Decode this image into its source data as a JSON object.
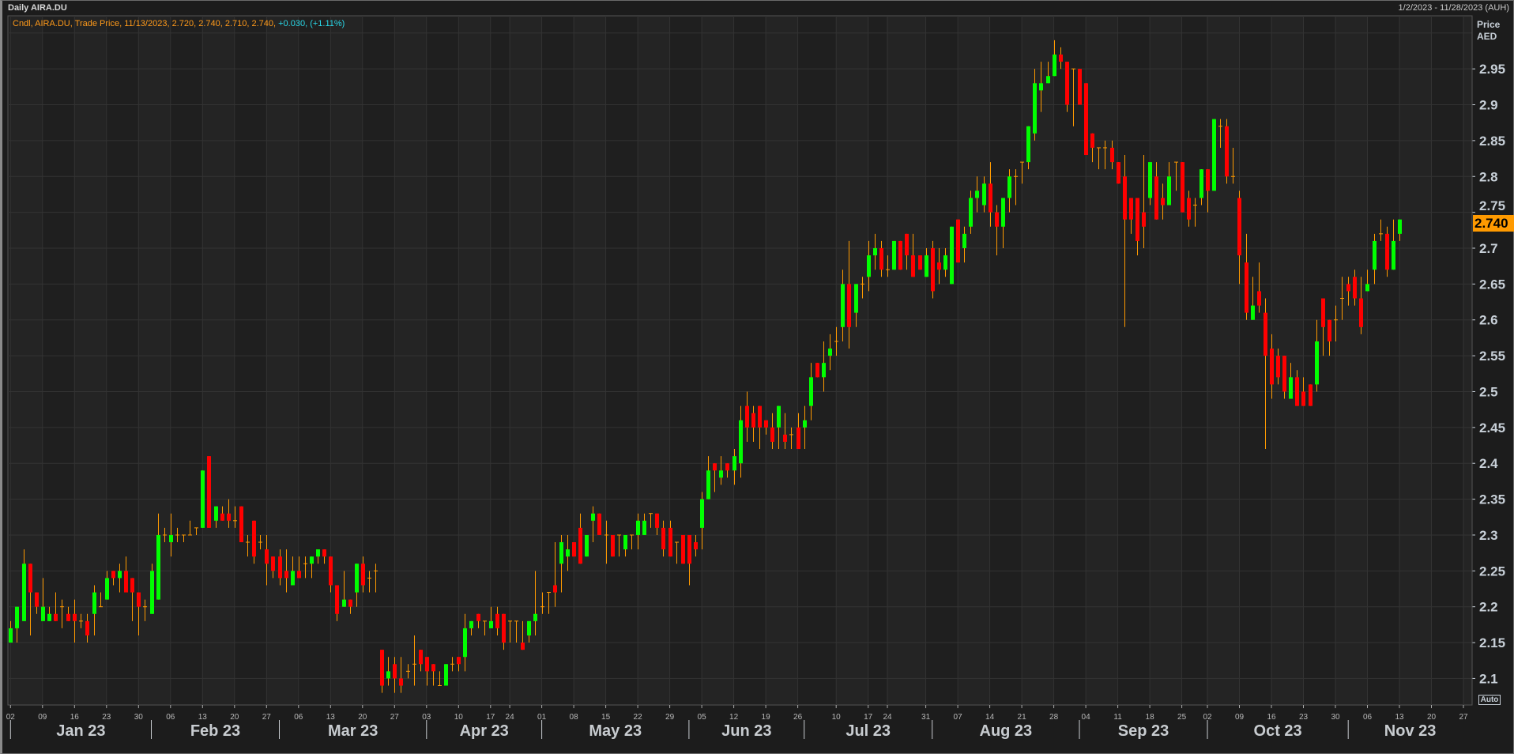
{
  "header": {
    "title": "Daily AIRA.DU",
    "date_range": "1/2/2023 - 11/28/2023 (AUH)"
  },
  "legend": {
    "text": "Cndl, AIRA.DU, Trade Price, 11/13/2023, 2.720, 2.740, 2.710, 2.740, ",
    "change": "+0.030, (+1.11%)"
  },
  "axis": {
    "price_label": "Price",
    "currency_label": "AED",
    "auto_label": "Auto",
    "last_price": "2.740"
  },
  "colors": {
    "up": "#00ff00",
    "down": "#ff0000",
    "wick": "#ff9a00",
    "last_price_bg": "#ff9a00",
    "change_text": "#29d8e8"
  },
  "chart_data": {
    "type": "candlestick",
    "title": "Daily AIRA.DU",
    "ylabel": "Price AED",
    "ylim": [
      2.063,
      3.024
    ],
    "grid": true,
    "ohlc_fields": [
      "open",
      "high",
      "low",
      "close"
    ],
    "first_date": "1/2/2023",
    "last_date": "11/13/2023",
    "y_ticks": [
      "2.1",
      "2.15",
      "2.2",
      "2.25",
      "2.3",
      "2.35",
      "2.4",
      "2.45",
      "2.5",
      "2.55",
      "2.6",
      "2.65",
      "2.7",
      "2.75",
      "2.8",
      "2.85",
      "2.9",
      "2.95"
    ],
    "x_day_ticks": [
      "02",
      "09",
      "16",
      "23",
      "30",
      "06",
      "13",
      "20",
      "27",
      "06",
      "13",
      "20",
      "27",
      "03",
      "10",
      "17",
      "24",
      "01",
      "08",
      "15",
      "22",
      "29",
      "05",
      "12",
      "19",
      "26",
      "10",
      "17",
      "24",
      "31",
      "07",
      "14",
      "21",
      "28",
      "04",
      "11",
      "18",
      "25",
      "02",
      "09",
      "16",
      "23",
      "30",
      "06",
      "13",
      "20",
      "27"
    ],
    "x_months": [
      "Jan 23",
      "Feb 23",
      "Mar 23",
      "Apr 23",
      "May 23",
      "Jun 23",
      "Jul 23",
      "Aug 23",
      "Sep 23",
      "Oct 23",
      "Nov 23"
    ],
    "candles": [
      [
        2.15,
        2.18,
        2.15,
        2.17
      ],
      [
        2.17,
        2.2,
        2.15,
        2.2
      ],
      [
        2.18,
        2.28,
        2.18,
        2.26
      ],
      [
        2.26,
        2.26,
        2.16,
        2.22
      ],
      [
        2.22,
        2.22,
        2.19,
        2.2
      ],
      [
        2.18,
        2.24,
        2.18,
        2.2
      ],
      [
        2.18,
        2.2,
        2.18,
        2.19
      ],
      [
        2.19,
        2.22,
        2.18,
        2.18
      ],
      [
        2.2,
        2.21,
        2.17,
        2.2
      ],
      [
        2.19,
        2.2,
        2.18,
        2.18
      ],
      [
        2.19,
        2.21,
        2.15,
        2.18
      ],
      [
        2.18,
        2.19,
        2.17,
        2.18
      ],
      [
        2.18,
        2.19,
        2.15,
        2.16
      ],
      [
        2.19,
        2.23,
        2.16,
        2.22
      ],
      [
        2.2,
        2.22,
        2.2,
        2.2
      ],
      [
        2.21,
        2.25,
        2.21,
        2.24
      ],
      [
        2.25,
        2.25,
        2.23,
        2.24
      ],
      [
        2.24,
        2.26,
        2.22,
        2.25
      ],
      [
        2.25,
        2.27,
        2.22,
        2.22
      ],
      [
        2.24,
        2.24,
        2.18,
        2.22
      ],
      [
        2.22,
        2.22,
        2.16,
        2.2
      ],
      [
        2.2,
        2.21,
        2.18,
        2.2
      ],
      [
        2.19,
        2.26,
        2.19,
        2.25
      ],
      [
        2.21,
        2.33,
        2.21,
        2.3
      ],
      [
        2.3,
        2.31,
        2.29,
        2.3
      ],
      [
        2.29,
        2.33,
        2.27,
        2.3
      ],
      [
        2.3,
        2.31,
        2.29,
        2.3
      ],
      [
        2.3,
        2.3,
        2.29,
        2.3
      ],
      [
        2.3,
        2.32,
        2.3,
        2.3
      ],
      [
        2.31,
        2.31,
        2.3,
        2.31
      ],
      [
        2.31,
        2.39,
        2.31,
        2.39
      ],
      [
        2.41,
        2.41,
        2.31,
        2.31
      ],
      [
        2.32,
        2.34,
        2.31,
        2.34
      ],
      [
        2.33,
        2.34,
        2.32,
        2.32
      ],
      [
        2.33,
        2.35,
        2.31,
        2.32
      ],
      [
        2.32,
        2.34,
        2.31,
        2.32
      ],
      [
        2.34,
        2.34,
        2.29,
        2.29
      ],
      [
        2.29,
        2.3,
        2.27,
        2.29
      ],
      [
        2.32,
        2.32,
        2.26,
        2.27
      ],
      [
        2.29,
        2.3,
        2.28,
        2.29
      ],
      [
        2.28,
        2.3,
        2.23,
        2.26
      ],
      [
        2.27,
        2.27,
        2.24,
        2.25
      ],
      [
        2.27,
        2.28,
        2.23,
        2.24
      ],
      [
        2.25,
        2.28,
        2.22,
        2.24
      ],
      [
        2.23,
        2.27,
        2.23,
        2.25
      ],
      [
        2.25,
        2.27,
        2.24,
        2.24
      ],
      [
        2.26,
        2.27,
        2.24,
        2.26
      ],
      [
        2.26,
        2.27,
        2.24,
        2.27
      ],
      [
        2.27,
        2.28,
        2.26,
        2.28
      ],
      [
        2.28,
        2.28,
        2.26,
        2.27
      ],
      [
        2.27,
        2.27,
        2.22,
        2.23
      ],
      [
        2.23,
        2.23,
        2.18,
        2.19
      ],
      [
        2.2,
        2.25,
        2.2,
        2.21
      ],
      [
        2.21,
        2.21,
        2.19,
        2.2
      ],
      [
        2.22,
        2.26,
        2.2,
        2.26
      ],
      [
        2.26,
        2.27,
        2.22,
        2.23
      ],
      [
        2.24,
        2.25,
        2.22,
        2.24
      ],
      [
        2.25,
        2.26,
        2.22,
        2.25
      ],
      [
        2.14,
        2.14,
        2.08,
        2.09
      ],
      [
        2.1,
        2.13,
        2.09,
        2.11
      ],
      [
        2.12,
        2.13,
        2.08,
        2.1
      ],
      [
        2.1,
        2.13,
        2.08,
        2.09
      ],
      [
        2.11,
        2.12,
        2.1,
        2.11
      ],
      [
        2.12,
        2.16,
        2.09,
        2.12
      ],
      [
        2.14,
        2.14,
        2.11,
        2.12
      ],
      [
        2.13,
        2.13,
        2.09,
        2.11
      ],
      [
        2.12,
        2.12,
        2.09,
        2.11
      ],
      [
        2.09,
        2.11,
        2.09,
        2.09
      ],
      [
        2.09,
        2.12,
        2.09,
        2.12
      ],
      [
        2.12,
        2.13,
        2.11,
        2.12
      ],
      [
        2.13,
        2.13,
        2.11,
        2.12
      ],
      [
        2.13,
        2.19,
        2.11,
        2.17
      ],
      [
        2.17,
        2.18,
        2.16,
        2.18
      ],
      [
        2.19,
        2.19,
        2.17,
        2.18
      ],
      [
        2.18,
        2.18,
        2.16,
        2.18
      ],
      [
        2.17,
        2.2,
        2.17,
        2.18
      ],
      [
        2.19,
        2.2,
        2.16,
        2.17
      ],
      [
        2.19,
        2.19,
        2.14,
        2.15
      ],
      [
        2.18,
        2.18,
        2.15,
        2.18
      ],
      [
        2.18,
        2.18,
        2.15,
        2.18
      ],
      [
        2.15,
        2.18,
        2.14,
        2.14
      ],
      [
        2.16,
        2.18,
        2.15,
        2.18
      ],
      [
        2.18,
        2.25,
        2.16,
        2.19
      ],
      [
        2.2,
        2.22,
        2.19,
        2.2
      ],
      [
        2.22,
        2.22,
        2.19,
        2.22
      ],
      [
        2.23,
        2.29,
        2.2,
        2.22
      ],
      [
        2.26,
        2.3,
        2.22,
        2.29
      ],
      [
        2.27,
        2.3,
        2.25,
        2.28
      ],
      [
        2.29,
        2.29,
        2.27,
        2.27
      ],
      [
        2.31,
        2.33,
        2.26,
        2.26
      ],
      [
        2.27,
        2.3,
        2.27,
        2.3
      ],
      [
        2.32,
        2.34,
        2.29,
        2.33
      ],
      [
        2.33,
        2.33,
        2.3,
        2.3
      ],
      [
        2.3,
        2.32,
        2.26,
        2.3
      ],
      [
        2.3,
        2.3,
        2.27,
        2.27
      ],
      [
        2.3,
        2.3,
        2.27,
        2.3
      ],
      [
        2.28,
        2.3,
        2.27,
        2.3
      ],
      [
        2.3,
        2.3,
        2.28,
        2.3
      ],
      [
        2.3,
        2.33,
        2.28,
        2.32
      ],
      [
        2.3,
        2.33,
        2.3,
        2.32
      ],
      [
        2.33,
        2.33,
        2.31,
        2.33
      ],
      [
        2.33,
        2.33,
        2.3,
        2.31
      ],
      [
        2.31,
        2.32,
        2.27,
        2.28
      ],
      [
        2.31,
        2.32,
        2.27,
        2.27
      ],
      [
        2.29,
        2.29,
        2.26,
        2.29
      ],
      [
        2.3,
        2.3,
        2.26,
        2.26
      ],
      [
        2.3,
        2.3,
        2.23,
        2.26
      ],
      [
        2.29,
        2.3,
        2.27,
        2.28
      ],
      [
        2.31,
        2.36,
        2.28,
        2.35
      ],
      [
        2.35,
        2.41,
        2.35,
        2.39
      ],
      [
        2.4,
        2.4,
        2.36,
        2.39
      ],
      [
        2.38,
        2.41,
        2.37,
        2.39
      ],
      [
        2.4,
        2.4,
        2.38,
        2.39
      ],
      [
        2.39,
        2.42,
        2.37,
        2.41
      ],
      [
        2.4,
        2.48,
        2.38,
        2.46
      ],
      [
        2.48,
        2.5,
        2.43,
        2.45
      ],
      [
        2.47,
        2.48,
        2.43,
        2.45
      ],
      [
        2.48,
        2.48,
        2.42,
        2.45
      ],
      [
        2.46,
        2.46,
        2.44,
        2.45
      ],
      [
        2.45,
        2.47,
        2.42,
        2.43
      ],
      [
        2.45,
        2.48,
        2.42,
        2.48
      ],
      [
        2.44,
        2.47,
        2.42,
        2.43
      ],
      [
        2.44,
        2.45,
        2.42,
        2.44
      ],
      [
        2.45,
        2.47,
        2.42,
        2.42
      ],
      [
        2.45,
        2.48,
        2.42,
        2.46
      ],
      [
        2.48,
        2.54,
        2.46,
        2.52
      ],
      [
        2.54,
        2.54,
        2.52,
        2.52
      ],
      [
        2.52,
        2.57,
        2.5,
        2.54
      ],
      [
        2.55,
        2.58,
        2.53,
        2.56
      ],
      [
        2.57,
        2.59,
        2.55,
        2.57
      ],
      [
        2.59,
        2.67,
        2.57,
        2.65
      ],
      [
        2.65,
        2.71,
        2.56,
        2.59
      ],
      [
        2.61,
        2.65,
        2.59,
        2.65
      ],
      [
        2.65,
        2.66,
        2.63,
        2.65
      ],
      [
        2.66,
        2.71,
        2.64,
        2.69
      ],
      [
        2.69,
        2.72,
        2.67,
        2.7
      ],
      [
        2.7,
        2.71,
        2.66,
        2.67
      ],
      [
        2.67,
        2.69,
        2.66,
        2.67
      ],
      [
        2.67,
        2.71,
        2.67,
        2.71
      ],
      [
        2.71,
        2.71,
        2.67,
        2.67
      ],
      [
        2.72,
        2.72,
        2.67,
        2.69
      ],
      [
        2.69,
        2.72,
        2.66,
        2.66
      ],
      [
        2.69,
        2.69,
        2.67,
        2.67
      ],
      [
        2.66,
        2.7,
        2.66,
        2.69
      ],
      [
        2.7,
        2.71,
        2.63,
        2.64
      ],
      [
        2.68,
        2.7,
        2.65,
        2.67
      ],
      [
        2.67,
        2.7,
        2.66,
        2.69
      ],
      [
        2.65,
        2.73,
        2.65,
        2.73
      ],
      [
        2.74,
        2.74,
        2.68,
        2.68
      ],
      [
        2.7,
        2.73,
        2.68,
        2.72
      ],
      [
        2.73,
        2.78,
        2.72,
        2.77
      ],
      [
        2.77,
        2.8,
        2.75,
        2.78
      ],
      [
        2.76,
        2.8,
        2.75,
        2.79
      ],
      [
        2.79,
        2.82,
        2.73,
        2.75
      ],
      [
        2.75,
        2.76,
        2.69,
        2.73
      ],
      [
        2.73,
        2.77,
        2.7,
        2.77
      ],
      [
        2.77,
        2.81,
        2.75,
        2.8
      ],
      [
        2.8,
        2.81,
        2.76,
        2.8
      ],
      [
        2.82,
        2.82,
        2.79,
        2.82
      ],
      [
        2.82,
        2.87,
        2.81,
        2.87
      ],
      [
        2.86,
        2.95,
        2.85,
        2.93
      ],
      [
        2.92,
        2.96,
        2.89,
        2.93
      ],
      [
        2.93,
        2.96,
        2.93,
        2.94
      ],
      [
        2.94,
        2.99,
        2.94,
        2.97
      ],
      [
        2.97,
        2.98,
        2.95,
        2.96
      ],
      [
        2.96,
        2.96,
        2.89,
        2.9
      ],
      [
        2.95,
        2.95,
        2.87,
        2.95
      ],
      [
        2.95,
        2.95,
        2.9,
        2.9
      ],
      [
        2.93,
        2.93,
        2.83,
        2.83
      ],
      [
        2.86,
        2.86,
        2.82,
        2.84
      ],
      [
        2.84,
        2.84,
        2.81,
        2.84
      ],
      [
        2.84,
        2.85,
        2.81,
        2.84
      ],
      [
        2.84,
        2.85,
        2.81,
        2.82
      ],
      [
        2.82,
        2.82,
        2.79,
        2.79
      ],
      [
        2.8,
        2.83,
        2.59,
        2.74
      ],
      [
        2.77,
        2.77,
        2.72,
        2.74
      ],
      [
        2.77,
        2.77,
        2.69,
        2.71
      ],
      [
        2.75,
        2.83,
        2.7,
        2.73
      ],
      [
        2.77,
        2.82,
        2.76,
        2.82
      ],
      [
        2.8,
        2.82,
        2.74,
        2.74
      ],
      [
        2.77,
        2.79,
        2.74,
        2.76
      ],
      [
        2.76,
        2.82,
        2.76,
        2.8
      ],
      [
        2.82,
        2.82,
        2.78,
        2.82
      ],
      [
        2.82,
        2.82,
        2.75,
        2.75
      ],
      [
        2.77,
        2.78,
        2.73,
        2.74
      ],
      [
        2.76,
        2.77,
        2.73,
        2.76
      ],
      [
        2.77,
        2.81,
        2.76,
        2.81
      ],
      [
        2.81,
        2.81,
        2.75,
        2.78
      ],
      [
        2.78,
        2.88,
        2.78,
        2.88
      ],
      [
        2.87,
        2.88,
        2.84,
        2.87
      ],
      [
        2.87,
        2.88,
        2.79,
        2.8
      ],
      [
        2.8,
        2.84,
        2.79,
        2.8
      ],
      [
        2.77,
        2.78,
        2.65,
        2.69
      ],
      [
        2.68,
        2.72,
        2.6,
        2.61
      ],
      [
        2.6,
        2.66,
        2.6,
        2.62
      ],
      [
        2.64,
        2.68,
        2.61,
        2.62
      ],
      [
        2.61,
        2.63,
        2.42,
        2.55
      ],
      [
        2.56,
        2.58,
        2.49,
        2.51
      ],
      [
        2.55,
        2.56,
        2.51,
        2.52
      ],
      [
        2.55,
        2.55,
        2.49,
        2.5
      ],
      [
        2.49,
        2.54,
        2.49,
        2.52
      ],
      [
        2.52,
        2.53,
        2.48,
        2.48
      ],
      [
        2.5,
        2.52,
        2.48,
        2.48
      ],
      [
        2.51,
        2.51,
        2.48,
        2.48
      ],
      [
        2.51,
        2.6,
        2.5,
        2.57
      ],
      [
        2.63,
        2.63,
        2.55,
        2.59
      ],
      [
        2.6,
        2.6,
        2.55,
        2.57
      ],
      [
        2.6,
        2.62,
        2.57,
        2.6
      ],
      [
        2.63,
        2.66,
        2.6,
        2.63
      ],
      [
        2.65,
        2.66,
        2.62,
        2.64
      ],
      [
        2.66,
        2.67,
        2.62,
        2.63
      ],
      [
        2.63,
        2.66,
        2.58,
        2.59
      ],
      [
        2.64,
        2.67,
        2.64,
        2.65
      ],
      [
        2.67,
        2.72,
        2.65,
        2.71
      ],
      [
        2.72,
        2.74,
        2.71,
        2.72
      ],
      [
        2.72,
        2.73,
        2.66,
        2.67
      ],
      [
        2.67,
        2.74,
        2.67,
        2.71
      ],
      [
        2.72,
        2.74,
        2.71,
        2.74
      ]
    ]
  }
}
